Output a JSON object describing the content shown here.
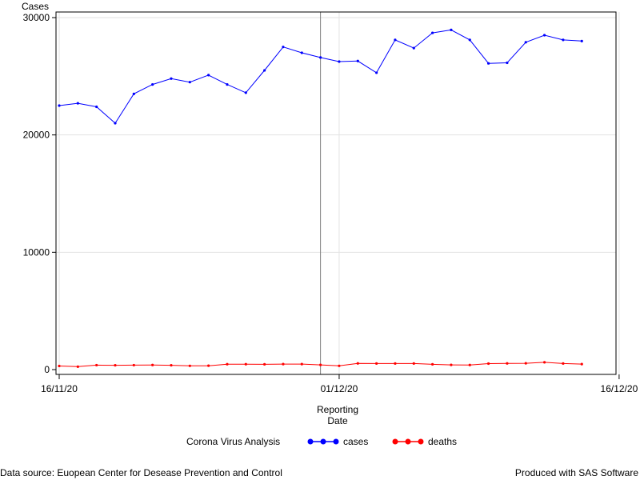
{
  "chart_data": {
    "type": "line",
    "ylabel": "Cases",
    "xlabel_line1": "Reporting",
    "xlabel_line2": "Date",
    "legend_title": "Corona Virus Analysis",
    "legend_placement": "bottom",
    "grid": true,
    "ylim": [
      0,
      30000
    ],
    "y_ticks": [
      0,
      10000,
      20000,
      30000
    ],
    "x_tick_labels": [
      "16/11/20",
      "01/12/20",
      "16/12/20"
    ],
    "x_dates": [
      "16/11/20",
      "17/11/20",
      "18/11/20",
      "19/11/20",
      "20/11/20",
      "21/11/20",
      "22/11/20",
      "23/11/20",
      "24/11/20",
      "25/11/20",
      "26/11/20",
      "27/11/20",
      "28/11/20",
      "29/11/20",
      "30/11/20",
      "01/12/20",
      "02/12/20",
      "03/12/20",
      "04/12/20",
      "05/12/20",
      "06/12/20",
      "07/12/20",
      "08/12/20",
      "09/12/20",
      "10/12/20",
      "11/12/20",
      "12/12/20",
      "13/12/20",
      "14/12/20"
    ],
    "reference_line_date": "30/11/20",
    "series": [
      {
        "name": "cases",
        "color": "#0000ff",
        "values": [
          22500,
          22700,
          22400,
          21000,
          23500,
          24300,
          24800,
          24500,
          25100,
          24300,
          23600,
          25500,
          27500,
          27000,
          26600,
          26250,
          26300,
          25300,
          28100,
          27400,
          28700,
          28950,
          28100,
          26100,
          26150,
          27900,
          28500,
          28100,
          28000
        ]
      },
      {
        "name": "deaths",
        "color": "#ff0000",
        "values": [
          310,
          250,
          380,
          370,
          380,
          390,
          370,
          320,
          330,
          460,
          460,
          450,
          470,
          470,
          400,
          320,
          530,
          520,
          520,
          520,
          450,
          400,
          390,
          510,
          530,
          540,
          620,
          520,
          470
        ]
      }
    ]
  },
  "footer": {
    "source": "Data source: Euopean Center for Desease Prevention and Control",
    "produced": "Produced with SAS Software"
  }
}
